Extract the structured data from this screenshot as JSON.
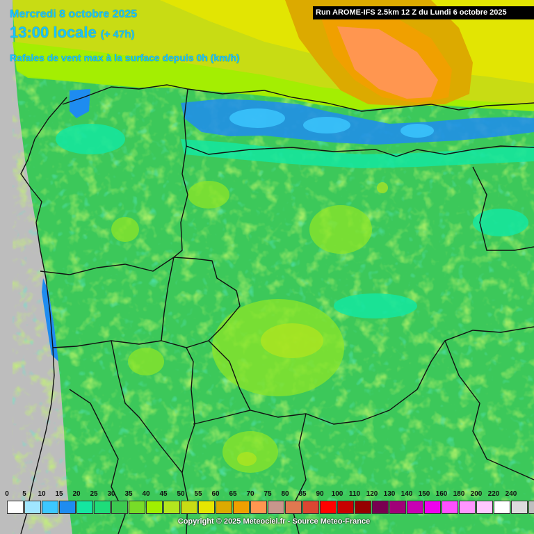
{
  "header": {
    "date": "Mercredi 8 octobre 2025",
    "time": "13:00 locale",
    "lead": "(+ 47h)",
    "parameter": "Rafales de vent max à la surface depuis 0h (km/h)",
    "run": "Run AROME-IFS 2.5km 12 Z du Lundi 6 octobre 2025"
  },
  "legend": {
    "labels": [
      "0",
      "5",
      "10",
      "15",
      "20",
      "25",
      "30",
      "35",
      "40",
      "45",
      "50",
      "55",
      "60",
      "65",
      "70",
      "75",
      "80",
      "85",
      "90",
      "100",
      "110",
      "120",
      "130",
      "140",
      "150",
      "160",
      "180",
      "200",
      "220",
      "240"
    ],
    "colors": [
      "#ffffff",
      "#a0e6ff",
      "#3cc8ff",
      "#1e8cf0",
      "#14e6a0",
      "#1edc7a",
      "#3cc850",
      "#78dc28",
      "#a0f000",
      "#b4e61e",
      "#c8dc14",
      "#e6e600",
      "#dcaa00",
      "#f0a000",
      "#ff9650",
      "#c8968c",
      "#e07850",
      "#dc4632",
      "#ff0000",
      "#c80000",
      "#960000",
      "#780050",
      "#a00078",
      "#c800b4",
      "#f000f0",
      "#ff50ff",
      "#ff96ff",
      "#ffc8ff",
      "#ffffff",
      "#dcdcdc",
      "#bebebe"
    ]
  },
  "footer": {
    "copyright": "Copyright © 2025 Meteociel.fr - Source Meteo-France"
  },
  "map_colors": {
    "base": "#3cc85a",
    "light": "#78dc28",
    "cyan": "#1edca0",
    "blue": "#1e8cf0",
    "outside": "#bdbdbd",
    "yellow": "#c8dc14",
    "orange": "#dcaa00",
    "salmon": "#ff9650"
  }
}
